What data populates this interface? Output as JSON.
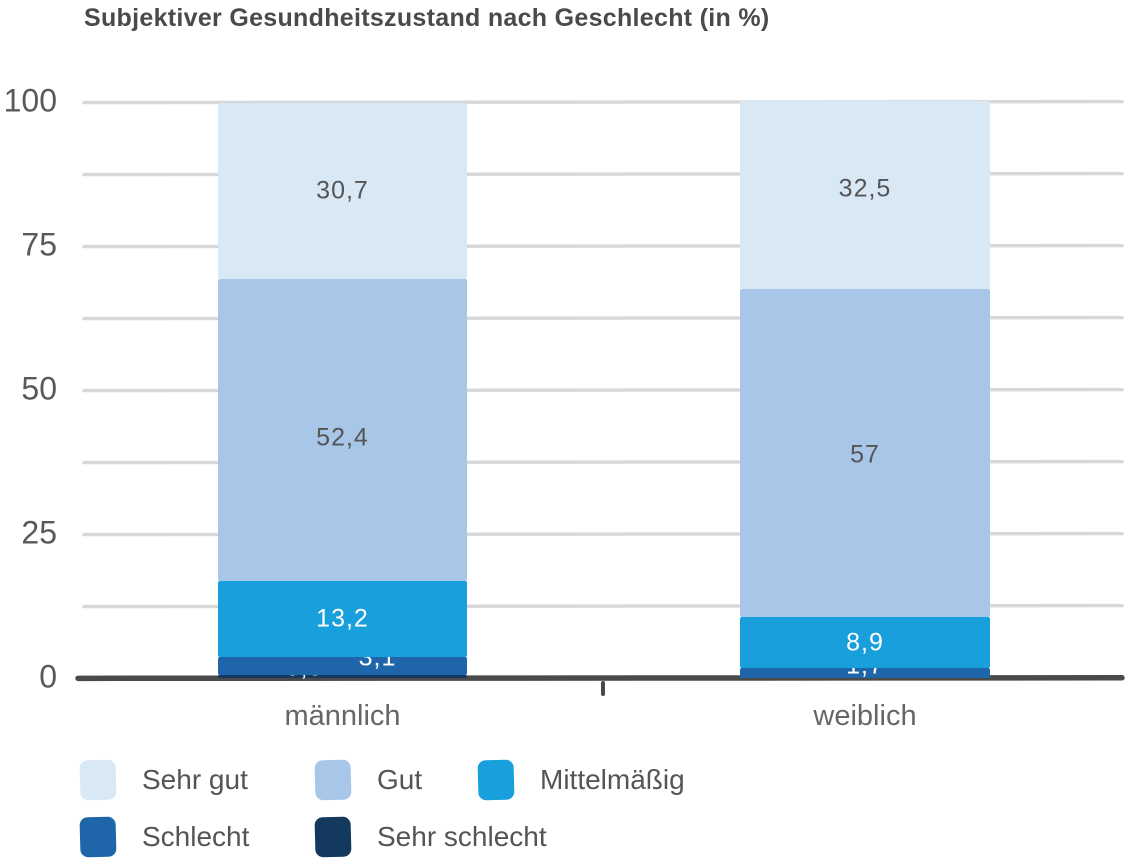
{
  "title": "Subjektiver Gesundheitszustand nach Geschlecht (in %)",
  "chart_data": {
    "type": "bar",
    "stacked": true,
    "title": "Subjektiver Gesundheitszustand nach Geschlecht (in %)",
    "categories": [
      "männlich",
      "weiblich"
    ],
    "series": [
      {
        "name": "Sehr gut",
        "color": "#d9e8f5",
        "values": [
          30.7,
          32.5
        ],
        "labels": [
          "30,7",
          "32,5"
        ],
        "label_color": "#555555",
        "label_offset": [
          [
            0,
            0
          ],
          [
            0,
            -6
          ]
        ]
      },
      {
        "name": "Gut",
        "color": "#a8c6e8",
        "values": [
          52.4,
          57.0
        ],
        "labels": [
          "52,4",
          "57"
        ],
        "label_color": "#555555",
        "label_offset": [
          [
            0,
            8
          ],
          [
            0,
            2
          ]
        ]
      },
      {
        "name": "Mittelmäßig",
        "color": "#199fdc",
        "values": [
          13.2,
          8.9
        ],
        "labels": [
          "13,2",
          "8,9"
        ],
        "label_color": "#ffffff",
        "label_offset": [
          [
            0,
            0
          ],
          [
            0,
            0
          ]
        ]
      },
      {
        "name": "Schlecht",
        "color": "#1e66a9",
        "values": [
          3.1,
          1.7
        ],
        "labels": [
          "3,1",
          "1,7"
        ],
        "label_color": "#ffffff",
        "label_offset": [
          [
            35,
            -8
          ],
          [
            0,
            -7
          ]
        ]
      },
      {
        "name": "Sehr schlecht",
        "color": "#13395e",
        "values": [
          0.5,
          null
        ],
        "labels": [
          "0,5",
          ""
        ],
        "label_color": "#ffffff",
        "label_offset": [
          [
            -38,
            -9
          ],
          [
            0,
            0
          ]
        ]
      }
    ],
    "y_axis": {
      "ticks": [
        "100",
        "75",
        "50",
        "25",
        "0"
      ],
      "tick_values": [
        100,
        75,
        50,
        25,
        0
      ],
      "minor_every": 12.5,
      "ylim": [
        0,
        100
      ]
    },
    "grid": true,
    "legend_position": "bottom",
    "colors": {
      "gridline": "#d8d8d8",
      "axis": "#4a4a4a",
      "title_text": "#4a4a4a",
      "tick_text": "#595959",
      "category_text": "#666666",
      "legend_text": "#555555"
    }
  }
}
